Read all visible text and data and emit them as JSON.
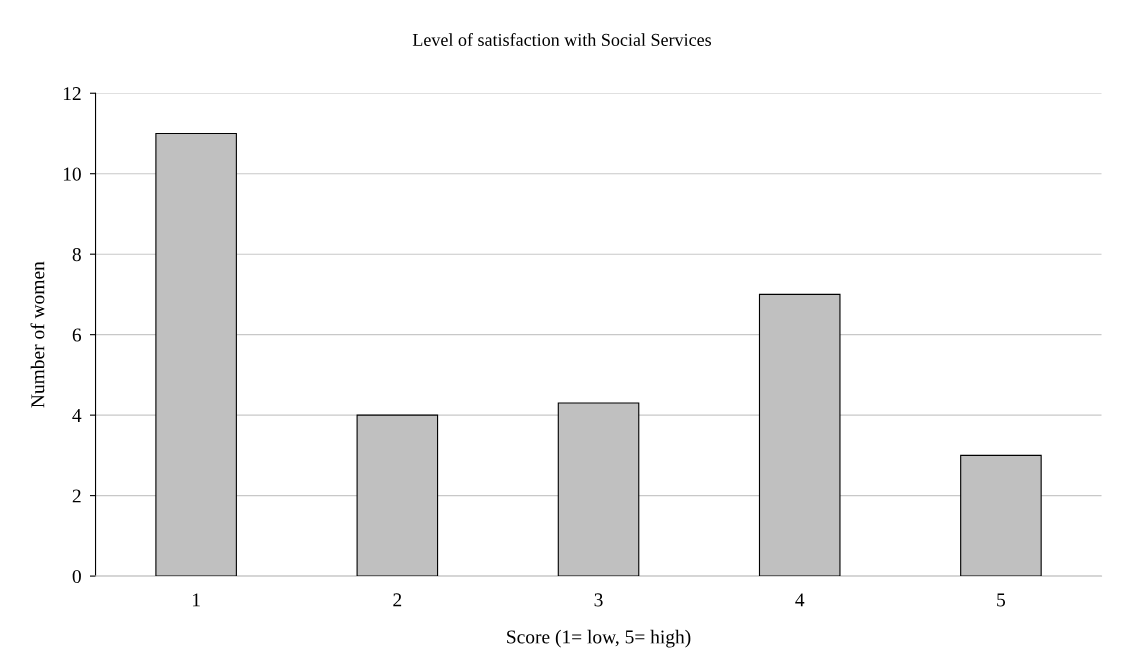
{
  "chart_data": {
    "type": "bar",
    "title": "Level of satisfaction with Social Services",
    "xlabel": "Score (1= low, 5= high)",
    "ylabel": "Number of women",
    "categories": [
      "1",
      "2",
      "3",
      "4",
      "5"
    ],
    "values": [
      11,
      4,
      4.3,
      7,
      3
    ],
    "color": "#c0c0c0",
    "ylim": [
      0,
      12
    ],
    "yticks": [
      0,
      2,
      4,
      6,
      8,
      10,
      12
    ],
    "grid": "y"
  }
}
